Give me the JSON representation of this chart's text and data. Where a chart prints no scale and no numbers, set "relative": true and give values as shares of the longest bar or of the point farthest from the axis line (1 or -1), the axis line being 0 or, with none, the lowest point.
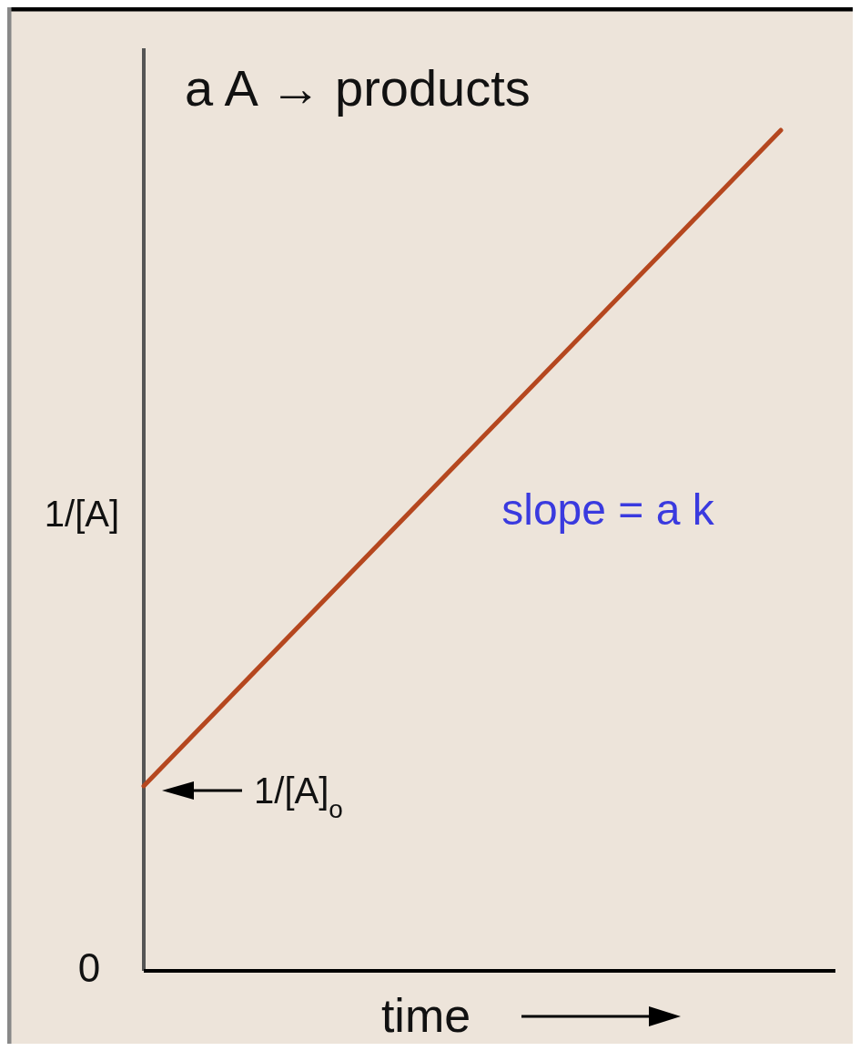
{
  "chart_data": {
    "type": "line",
    "title": "a A → products",
    "xlabel": "time",
    "ylabel": "1/[A]",
    "relative": true,
    "categories": [
      null,
      null
    ],
    "series": [
      {
        "color": "#b5471f",
        "values": [
          0.22,
          1
        ]
      }
    ],
    "annotations": [
      "0",
      "1/[A]$_{o}$",
      "slope = a k"
    ]
  }
}
